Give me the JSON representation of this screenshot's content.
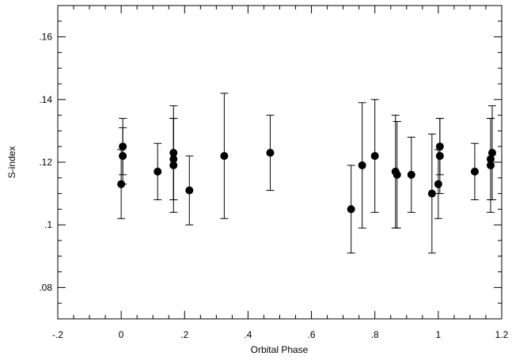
{
  "chart_data": {
    "type": "scatter",
    "xlabel": "Orbital Phase",
    "ylabel": "S-index",
    "x": [
      0.0,
      0.005,
      0.005,
      0.115,
      0.165,
      0.165,
      0.165,
      0.215,
      0.325,
      0.47,
      0.725,
      0.76,
      0.8,
      0.865,
      0.87,
      0.915,
      0.98,
      1.0,
      1.005,
      1.005,
      1.115,
      1.165,
      1.17,
      1.165
    ],
    "values": [
      0.113,
      0.125,
      0.122,
      0.117,
      0.123,
      0.121,
      0.119,
      0.111,
      0.122,
      0.123,
      0.105,
      0.119,
      0.122,
      0.117,
      0.116,
      0.116,
      0.11,
      0.113,
      0.125,
      0.122,
      0.117,
      0.121,
      0.123,
      0.119
    ],
    "errors": [
      0.011,
      0.009,
      0.009,
      0.009,
      0.015,
      0.013,
      0.015,
      0.011,
      0.02,
      0.012,
      0.014,
      0.02,
      0.018,
      0.018,
      0.017,
      0.012,
      0.019,
      0.011,
      0.009,
      0.012,
      0.009,
      0.013,
      0.015,
      0.015
    ],
    "color": "#000000",
    "xlim": [
      -0.2,
      1.2
    ],
    "xticks": [
      {
        "value": -0.2,
        "label": "-.2"
      },
      0,
      {
        "value": 0.2,
        "label": ".2"
      },
      {
        "value": 0.4,
        "label": ".4"
      },
      {
        "value": 0.6,
        "label": ".6"
      },
      {
        "value": 0.8,
        "label": ".8"
      },
      1,
      {
        "value": 1.2,
        "label": "1.2"
      }
    ],
    "ylim": [
      0.07,
      0.17
    ],
    "yticks": [
      {
        "value": 0.08,
        "label": ".08"
      },
      {
        "value": 0.1,
        "label": ".1"
      },
      {
        "value": 0.12,
        "label": ".12"
      },
      {
        "value": 0.14,
        "label": ".14"
      },
      {
        "value": 0.16,
        "label": ".16"
      }
    ],
    "grid": false
  }
}
